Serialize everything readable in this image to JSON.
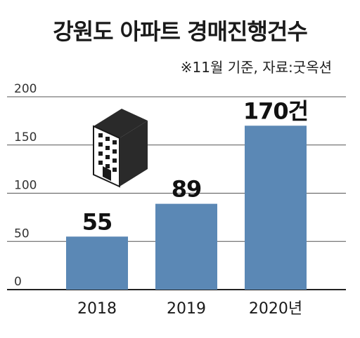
{
  "title": "강원도 아파트 경매진행건수",
  "subtitle": "※11월 기준, 자료:굿옥션",
  "colors": {
    "bar": "#5b88b5",
    "grid": "#555555",
    "axis": "#222222"
  },
  "icon": "apartment-building-icon",
  "chart_data": {
    "type": "bar",
    "title": "강원도 아파트 경매진행건수",
    "subtitle": "※11월 기준, 자료:굿옥션",
    "categories": [
      "2018",
      "2019",
      "2020년"
    ],
    "values": [
      55,
      89,
      170
    ],
    "value_labels": [
      "55",
      "89",
      "170건"
    ],
    "yticks": [
      "0",
      "50",
      "100",
      "150",
      "200"
    ],
    "ylim": [
      0,
      200
    ],
    "grid": true,
    "xlabel": "",
    "ylabel": ""
  }
}
